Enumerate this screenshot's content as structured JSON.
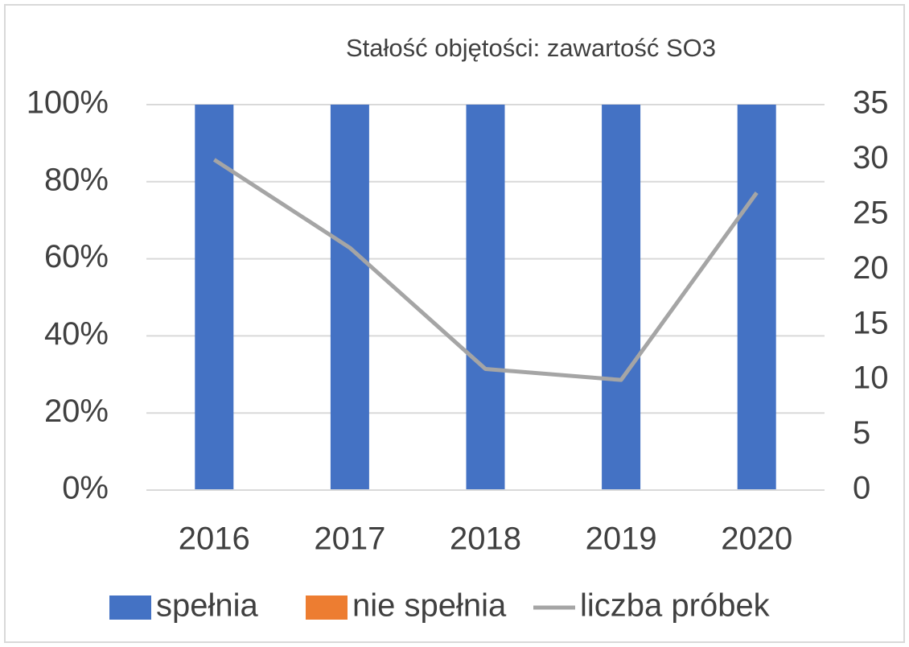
{
  "chart_data": {
    "type": "bar",
    "stacked": true,
    "title": "Stałość objętości: zawartość SO3",
    "categories": [
      "2016",
      "2017",
      "2018",
      "2019",
      "2020"
    ],
    "series": [
      {
        "name": "spełnia",
        "type": "bar",
        "color": "#4472c4",
        "values": [
          100,
          100,
          100,
          100,
          100
        ]
      },
      {
        "name": "nie spełnia",
        "type": "bar",
        "color": "#ed7d31",
        "values": [
          0,
          0,
          0,
          0,
          0
        ]
      },
      {
        "name": "liczba próbek",
        "type": "line",
        "axis": "y2",
        "color": "#a5a5a5",
        "values": [
          30,
          22,
          11,
          10,
          27
        ]
      }
    ],
    "ylim": [
      0,
      100
    ],
    "yticks": [
      {
        "value": 0,
        "label": "0%"
      },
      {
        "value": 20,
        "label": "20%"
      },
      {
        "value": 40,
        "label": "40%"
      },
      {
        "value": 60,
        "label": "60%"
      },
      {
        "value": 80,
        "label": "80%"
      },
      {
        "value": 100,
        "label": "100%"
      }
    ],
    "y2lim": [
      0,
      35
    ],
    "y2ticks": [
      0,
      5,
      10,
      15,
      20,
      25,
      30,
      35
    ],
    "grid": true,
    "legend": "bottom"
  }
}
